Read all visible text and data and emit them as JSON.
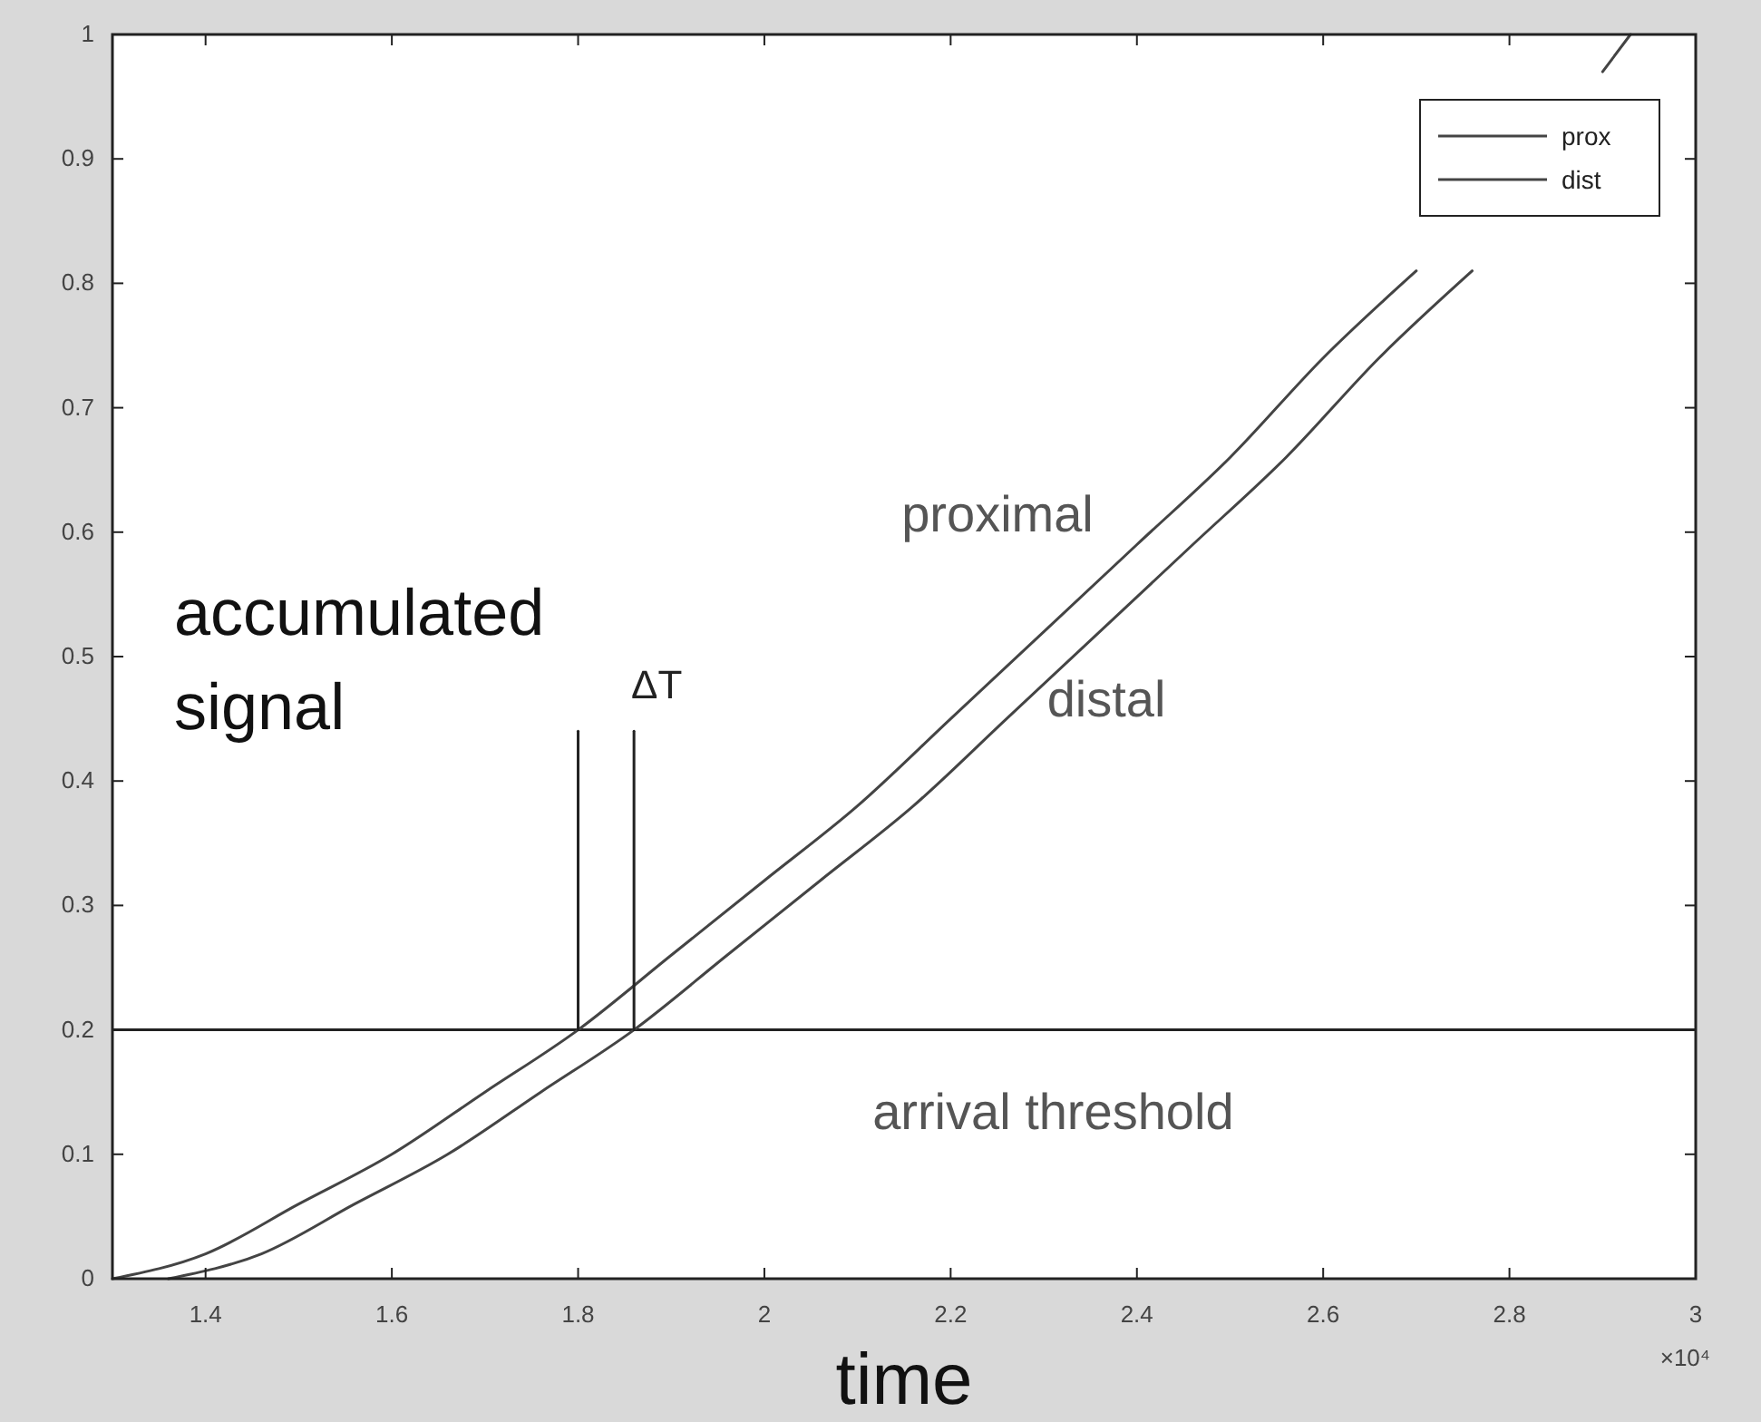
{
  "chart_data": {
    "type": "line",
    "xlabel": "time",
    "ylabel": "accumulated signal",
    "xlim": [
      1.3,
      3
    ],
    "ylim": [
      0,
      1
    ],
    "xticks": [
      1.4,
      1.6,
      1.8,
      2,
      2.2,
      2.4,
      2.6,
      2.8,
      3
    ],
    "yticks": [
      0,
      0.1,
      0.2,
      0.3,
      0.4,
      0.5,
      0.6,
      0.7,
      0.8,
      0.9,
      1
    ],
    "series": [
      {
        "name": "prox",
        "color": "#444444",
        "x": [
          1.3,
          1.4,
          1.5,
          1.6,
          1.7,
          1.8,
          1.9,
          2.0,
          2.1,
          2.2,
          2.3,
          2.4,
          2.5,
          2.6,
          2.7,
          2.8,
          2.9,
          2.93
        ],
        "values": [
          0,
          0.02,
          0.06,
          0.1,
          0.15,
          0.2,
          0.26,
          0.32,
          0.38,
          0.45,
          0.52,
          0.59,
          0.66,
          0.74,
          0.81,
          null,
          0.97,
          1
        ]
      },
      {
        "name": "dist",
        "color": "#444444",
        "x": [
          1.36,
          1.46,
          1.56,
          1.66,
          1.76,
          1.86,
          1.96,
          2.06,
          2.16,
          2.26,
          2.36,
          2.46,
          2.56,
          2.66,
          2.76
        ],
        "values": [
          0,
          0.02,
          0.06,
          0.1,
          0.15,
          0.2,
          0.26,
          0.32,
          0.38,
          0.45,
          0.52,
          0.59,
          0.66,
          0.74,
          0.81
        ]
      },
      {
        "color": "#222222",
        "x": [
          1.8,
          1.8
        ],
        "values": [
          0.2,
          0.44
        ]
      },
      {
        "color": "#222222",
        "x": [
          1.86,
          1.86
        ],
        "values": [
          0.2,
          0.44
        ]
      }
    ],
    "ref_lines": [
      {
        "axis": "y",
        "value": 0.2,
        "label": "arrival threshold",
        "color": "#222222"
      }
    ],
    "annotations": [
      "proximal",
      "distal",
      "ΔT",
      "×10⁴"
    ],
    "legend": "top right",
    "grid": false,
    "marker": "none",
    "line_style": "solid"
  }
}
